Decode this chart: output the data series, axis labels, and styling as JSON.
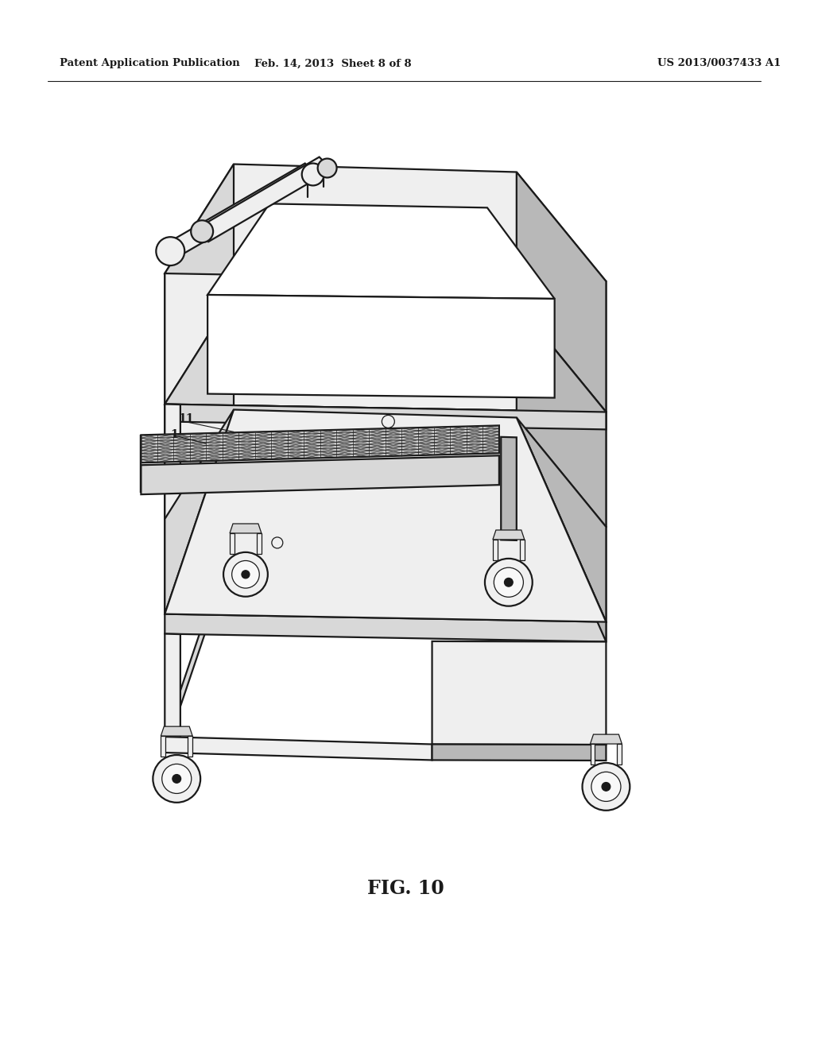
{
  "bg_color": "#ffffff",
  "header_left": "Patent Application Publication",
  "header_mid": "Feb. 14, 2013  Sheet 8 of 8",
  "header_right": "US 2013/0037433 A1",
  "figure_label": "FIG. 10",
  "label_1": "1",
  "label_11": "11",
  "lc": "#1a1a1a",
  "lw": 1.6,
  "lw_thin": 0.9,
  "fc_white": "#ffffff",
  "fc_light": "#efefef",
  "fc_mid": "#d8d8d8",
  "fc_dark": "#b8b8b8",
  "fc_vdark": "#989898",
  "grid_color": "#333333",
  "note_color": "#444444"
}
